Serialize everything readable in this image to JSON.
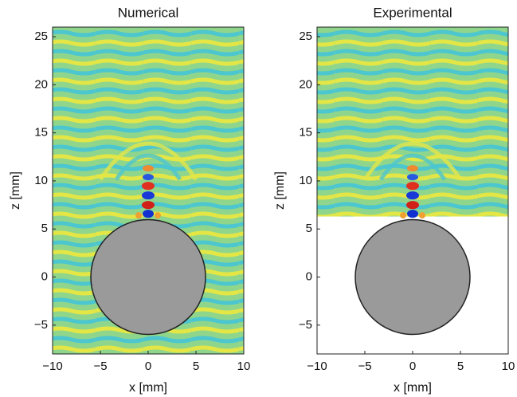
{
  "chart_data": [
    {
      "type": "heatmap",
      "title": "Numerical",
      "x_label": "x [mm]",
      "y_label": "z [mm]",
      "xlim": [
        -10,
        10
      ],
      "ylim": [
        -8,
        26
      ],
      "xticks": [
        {
          "value": -10,
          "label": "−10"
        },
        {
          "value": -5,
          "label": "−5"
        },
        0,
        5,
        10
      ],
      "yticks": [
        {
          "value": -5,
          "label": "−5"
        },
        0,
        5,
        10,
        15,
        20,
        25
      ],
      "field_ylim": [
        -8,
        26
      ],
      "circle": {
        "x": 0,
        "z": 0,
        "r": 6
      }
    },
    {
      "type": "heatmap",
      "title": "Experimental",
      "x_label": "x [mm]",
      "y_label": "z [mm]",
      "xlim": [
        -10,
        10
      ],
      "ylim": [
        -8,
        26
      ],
      "xticks": [
        {
          "value": -10,
          "label": "−10"
        },
        {
          "value": -5,
          "label": "−5"
        },
        0,
        5,
        10
      ],
      "yticks": [
        {
          "value": -5,
          "label": "−5"
        },
        0,
        5,
        10,
        15,
        20,
        25
      ],
      "field_ylim": [
        6.3,
        26
      ],
      "circle": {
        "x": 0,
        "z": 0,
        "r": 6
      }
    }
  ]
}
